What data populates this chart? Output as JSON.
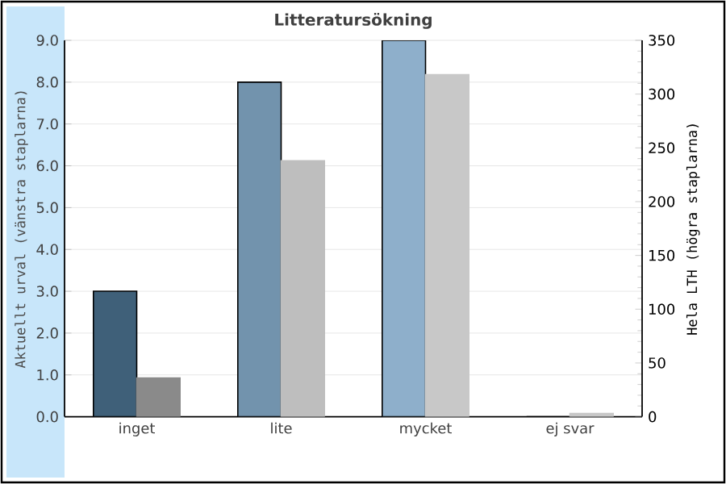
{
  "chart_data": {
    "type": "bar",
    "title": "Litteratursökning",
    "ylabel": "Aktuellt urval (vänstra staplarna)",
    "y2label": "Hela LTH (högra staplarna)",
    "categories": [
      "inget",
      "lite",
      "mycket",
      "ej svar"
    ],
    "series": [
      {
        "colors": [
          "#3f6079",
          "#7293ad",
          "#8eafcb",
          "#8eafcb"
        ],
        "values": [
          3,
          8,
          9,
          0
        ]
      },
      {
        "axis": "y2",
        "colors": [
          "#8a8a8a",
          "#bebebe",
          "#c8c8c8",
          "#c8c8c8"
        ],
        "values": [
          36,
          238,
          318,
          3
        ]
      }
    ],
    "ylim": [
      0,
      9
    ],
    "yticks": [
      {
        "value": 0,
        "label": "0.0"
      },
      {
        "value": 1,
        "label": "1.0"
      },
      {
        "value": 2,
        "label": "2.0"
      },
      {
        "value": 3,
        "label": "3.0"
      },
      {
        "value": 4,
        "label": "4.0"
      },
      {
        "value": 5,
        "label": "5.0"
      },
      {
        "value": 6,
        "label": "6.0"
      },
      {
        "value": 7,
        "label": "7.0"
      },
      {
        "value": 8,
        "label": "8.0"
      },
      {
        "value": 9,
        "label": "9.0"
      }
    ],
    "y2lim": [
      0,
      350
    ],
    "y2ticks": [
      0,
      50,
      100,
      150,
      200,
      250,
      300,
      350
    ],
    "grid": "y"
  }
}
